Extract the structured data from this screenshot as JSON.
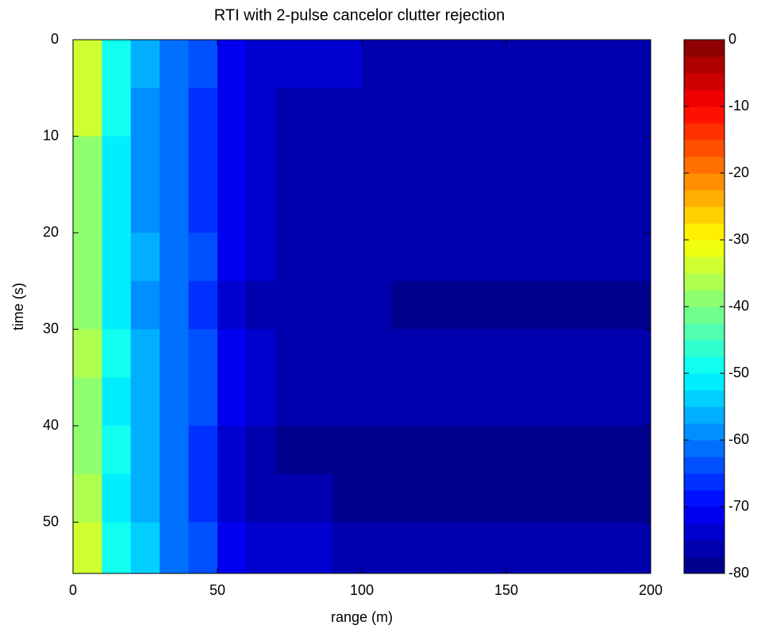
{
  "chart_data": {
    "type": "heatmap",
    "title": "RTI with 2-pulse cancelor clutter rejection",
    "xlabel": "range (m)",
    "ylabel": "time (s)",
    "xbins": [
      0,
      10,
      20,
      30,
      40,
      50,
      60,
      70,
      80,
      90,
      100,
      110,
      120,
      130,
      140,
      150,
      160,
      170,
      180,
      190,
      200
    ],
    "ybins": [
      0,
      5,
      10,
      15,
      20,
      25,
      30,
      35,
      40,
      45,
      50,
      55.3
    ],
    "z": [
      [
        -33,
        -48,
        -57,
        -61,
        -65,
        -71,
        -74,
        -75,
        -75,
        -75,
        -76,
        -76,
        -76,
        -76,
        -76,
        -76,
        -76,
        -76,
        -76,
        -76
      ],
      [
        -35,
        -50,
        -58,
        -62,
        -66,
        -72,
        -75,
        -76,
        -76,
        -76,
        -76,
        -76,
        -77,
        -77,
        -77,
        -77,
        -77,
        -77,
        -77,
        -77
      ],
      [
        -38,
        -52,
        -58,
        -62,
        -66,
        -72,
        -75,
        -76,
        -76,
        -77,
        -77,
        -77,
        -77,
        -77,
        -77,
        -77,
        -77,
        -77,
        -77,
        -77
      ],
      [
        -40,
        -52,
        -58,
        -62,
        -66,
        -72,
        -75,
        -76,
        -76,
        -77,
        -77,
        -77,
        -77,
        -77,
        -77,
        -77,
        -77,
        -77,
        -77,
        -77
      ],
      [
        -40,
        -51,
        -57,
        -62,
        -65,
        -72,
        -75,
        -76,
        -77,
        -77,
        -77,
        -77,
        -77,
        -77,
        -77,
        -77,
        -77,
        -77,
        -77,
        -77
      ],
      [
        -38,
        -52,
        -58,
        -62,
        -66,
        -73,
        -76,
        -77,
        -77,
        -77,
        -77,
        -78,
        -78,
        -78,
        -78,
        -78,
        -78,
        -78,
        -78,
        -78
      ],
      [
        -36,
        -50,
        -57,
        -61,
        -65,
        -72,
        -75,
        -76,
        -77,
        -77,
        -77,
        -77,
        -77,
        -77,
        -77,
        -77,
        -77,
        -77,
        -77,
        -77
      ],
      [
        -38,
        -51,
        -56,
        -61,
        -65,
        -72,
        -75,
        -76,
        -77,
        -77,
        -77,
        -77,
        -77,
        -77,
        -77,
        -77,
        -77,
        -77,
        -77,
        -77
      ],
      [
        -38,
        -50,
        -57,
        -62,
        -66,
        -74,
        -77,
        -78,
        -78,
        -79,
        -79,
        -79,
        -79,
        -79,
        -79,
        -79,
        -79,
        -79,
        -79,
        -79
      ],
      [
        -37,
        -51,
        -57,
        -62,
        -66,
        -73,
        -76,
        -77,
        -77,
        -78,
        -78,
        -78,
        -78,
        -78,
        -78,
        -78,
        -78,
        -78,
        -78,
        -78
      ],
      [
        -33,
        -48,
        -55,
        -61,
        -65,
        -72,
        -75,
        -75,
        -75,
        -76,
        -76,
        -76,
        -76,
        -76,
        -76,
        -76,
        -76,
        -76,
        -76,
        -76
      ]
    ],
    "xlim": [
      0,
      200
    ],
    "xticks": [
      0,
      50,
      100,
      150,
      200
    ],
    "ylim": [
      0,
      55.3
    ],
    "yticks": [
      0,
      10,
      20,
      30,
      40,
      50
    ],
    "yreverse": true,
    "clim": [
      -80,
      0
    ],
    "cticks": [
      0,
      -10,
      -20,
      -30,
      -40,
      -50,
      -60,
      -70,
      -80
    ],
    "colormap": "jet",
    "levels": 32
  }
}
